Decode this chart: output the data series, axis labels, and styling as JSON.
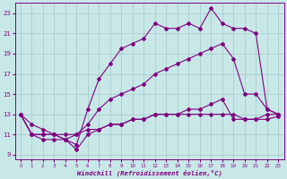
{
  "background_color": "#c8e8e8",
  "grid_color": "#aacccc",
  "line_color": "#800080",
  "xlim": [
    -0.5,
    23.5
  ],
  "ylim": [
    8.5,
    24
  ],
  "xticks": [
    0,
    1,
    2,
    3,
    4,
    5,
    6,
    7,
    8,
    9,
    10,
    11,
    12,
    13,
    14,
    15,
    16,
    17,
    18,
    19,
    20,
    21,
    22,
    23
  ],
  "yticks": [
    9,
    11,
    13,
    15,
    17,
    19,
    21,
    23
  ],
  "xlabel": "Windchill (Refroidissement éolien,°C)",
  "series": [
    {
      "x": [
        0,
        1,
        2,
        3,
        4,
        5,
        6,
        7,
        8,
        9,
        10,
        11,
        12,
        13,
        14,
        15,
        16,
        17,
        18,
        19,
        20,
        21,
        22,
        23
      ],
      "y": [
        13,
        12,
        11.5,
        11,
        10.5,
        10,
        13.5,
        16.5,
        18,
        19.5,
        20,
        20.5,
        22,
        21.5,
        21.5,
        22,
        21.5,
        23.5,
        22,
        21.5,
        21.5,
        21,
        13.5,
        13
      ]
    },
    {
      "x": [
        0,
        1,
        2,
        3,
        4,
        5,
        6,
        7,
        8,
        9,
        10,
        11,
        12,
        13,
        14,
        15,
        16,
        17,
        18,
        19,
        20,
        21,
        22,
        23
      ],
      "y": [
        13,
        11,
        11,
        11,
        10.5,
        11,
        12,
        13.5,
        14.5,
        15,
        15.5,
        16,
        17,
        17.5,
        18,
        18.5,
        19,
        19.5,
        20,
        18.5,
        15,
        15,
        13.5,
        13
      ]
    },
    {
      "x": [
        0,
        1,
        2,
        3,
        4,
        5,
        6,
        7,
        8,
        9,
        10,
        11,
        12,
        13,
        14,
        15,
        16,
        17,
        18,
        19,
        20,
        21,
        22,
        23
      ],
      "y": [
        13,
        11,
        11,
        11,
        11,
        11,
        11.5,
        11.5,
        12,
        12,
        12.5,
        12.5,
        13,
        13,
        13,
        13.5,
        13.5,
        14,
        14.5,
        12.5,
        12.5,
        12.5,
        13,
        13
      ]
    },
    {
      "x": [
        0,
        1,
        2,
        3,
        4,
        5,
        6,
        7,
        8,
        9,
        10,
        11,
        12,
        13,
        14,
        15,
        16,
        17,
        18,
        19,
        20,
        21,
        22,
        23
      ],
      "y": [
        13,
        11,
        10.5,
        10.5,
        10.5,
        9.5,
        11,
        11.5,
        12,
        12,
        12.5,
        12.5,
        13,
        13,
        13,
        13,
        13,
        13,
        13,
        13,
        12.5,
        12.5,
        12.5,
        12.8
      ]
    }
  ]
}
